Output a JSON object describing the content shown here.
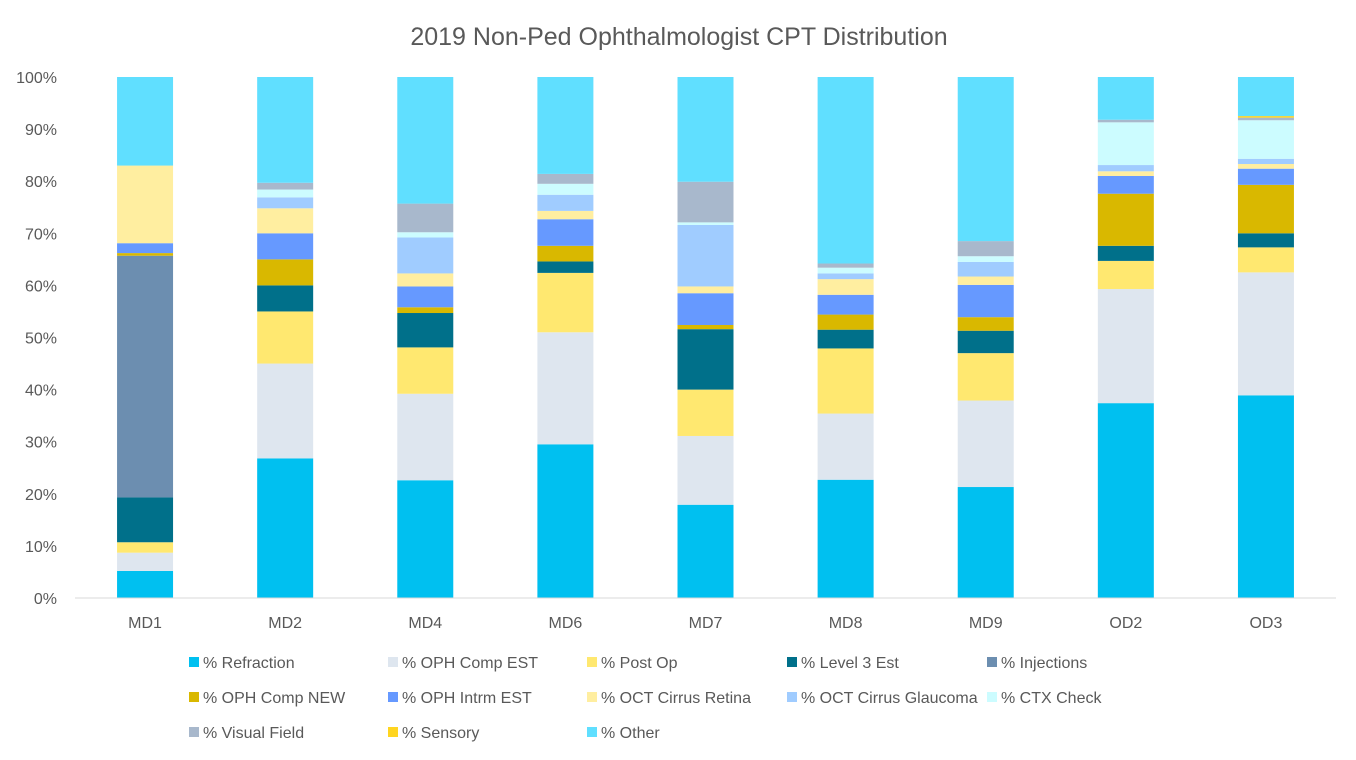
{
  "chart_data": {
    "type": "stacked-bar-100",
    "title": "2019 Non-Ped Ophthalmologist CPT Distribution",
    "xlabel": "",
    "ylabel": "",
    "ylim": [
      0,
      100
    ],
    "yticks": [
      "0%",
      "10%",
      "20%",
      "30%",
      "40%",
      "50%",
      "60%",
      "70%",
      "80%",
      "90%",
      "100%"
    ],
    "grid": false,
    "legend_position": "bottom",
    "categories": [
      "MD1",
      "MD2",
      "MD4",
      "MD6",
      "MD7",
      "MD8",
      "MD9",
      "OD2",
      "OD3"
    ],
    "series": [
      {
        "name": "% Refraction",
        "color": "#00C0F0",
        "values": [
          5.2,
          26.8,
          22.6,
          29.5,
          17.9,
          22.7,
          21.3,
          37.4,
          38.9
        ]
      },
      {
        "name": "% OPH Comp EST",
        "color": "#DEE6EF",
        "values": [
          3.5,
          18.2,
          16.6,
          21.5,
          13.2,
          12.7,
          16.6,
          21.9,
          23.6
        ]
      },
      {
        "name": "% Post Op",
        "color": "#FFE870",
        "values": [
          2.0,
          10.0,
          8.9,
          11.4,
          8.9,
          12.5,
          9.1,
          5.4,
          4.8
        ]
      },
      {
        "name": "% Level 3 Est",
        "color": "#00708A",
        "values": [
          8.6,
          5.0,
          6.6,
          2.2,
          11.6,
          3.6,
          4.3,
          2.9,
          2.7
        ]
      },
      {
        "name": "% Injections",
        "color": "#6C8EB0",
        "values": [
          46.4,
          0,
          0,
          0,
          0,
          0,
          0,
          0,
          0
        ]
      },
      {
        "name": "% OPH Comp NEW",
        "color": "#D9B800",
        "values": [
          0.5,
          5.0,
          1.1,
          3.0,
          0.8,
          2.9,
          2.6,
          10.0,
          9.3
        ]
      },
      {
        "name": "% OPH Intrm EST",
        "color": "#6699FF",
        "values": [
          1.9,
          5.0,
          4.0,
          5.1,
          6.1,
          3.8,
          6.2,
          3.4,
          3.1
        ]
      },
      {
        "name": "% OCT Cirrus Retina",
        "color": "#FFEEA0",
        "values": [
          14.9,
          4.8,
          2.5,
          1.6,
          1.3,
          3.0,
          1.6,
          0.9,
          0.9
        ]
      },
      {
        "name": "% OCT Cirrus Glaucoma",
        "color": "#A0CCFF",
        "values": [
          0,
          2.1,
          6.9,
          3.1,
          11.8,
          1.1,
          2.8,
          1.2,
          1.0
        ]
      },
      {
        "name": "% CTX Check",
        "color": "#CCFCFF",
        "values": [
          0,
          1.5,
          1.0,
          2.1,
          0.5,
          1.1,
          1.1,
          8.2,
          7.4
        ]
      },
      {
        "name": "% Visual Field",
        "color": "#A8B8CC",
        "values": [
          0,
          1.3,
          5.5,
          1.9,
          7.8,
          0.8,
          2.9,
          0.5,
          0.5
        ]
      },
      {
        "name": "% Sensory",
        "color": "#FFD520",
        "values": [
          0,
          0,
          0,
          0,
          0,
          0,
          0,
          0,
          0.3
        ]
      },
      {
        "name": "% Other",
        "color": "#60DFFF",
        "values": [
          17.0,
          20.3,
          24.3,
          18.6,
          20.1,
          35.8,
          31.5,
          8.2,
          7.5
        ]
      }
    ]
  }
}
